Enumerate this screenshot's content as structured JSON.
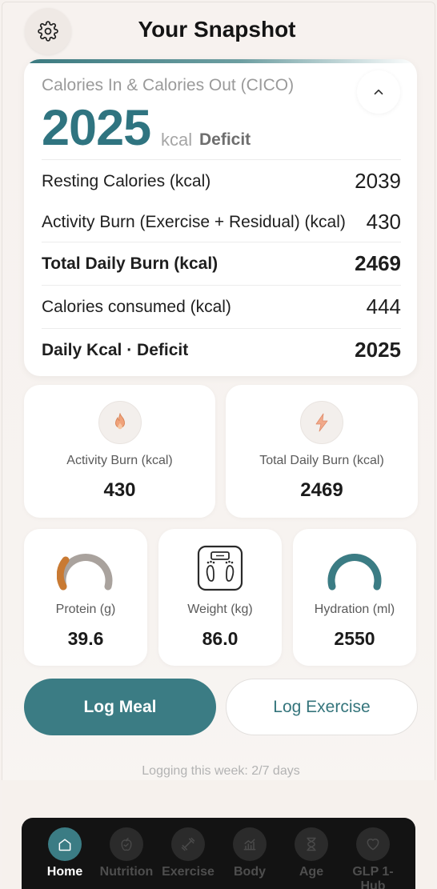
{
  "header": {
    "title": "Your Snapshot",
    "settings_icon": "gear-icon"
  },
  "cico": {
    "heading": "Calories In & Calories Out (CICO)",
    "collapse_icon": "chevron-up-icon",
    "value": "2025",
    "unit": "kcal",
    "status": "Deficit",
    "rows": [
      {
        "label": "Resting Calories (kcal)",
        "value": "2039",
        "bold": false
      },
      {
        "label": "Activity Burn (Exercise + Residual) (kcal)",
        "value": "430",
        "bold": false
      },
      {
        "label": "Total Daily Burn (kcal)",
        "value": "2469",
        "bold": true
      },
      {
        "label": "Calories consumed (kcal)",
        "value": "444",
        "bold": false
      },
      {
        "label": "Daily Kcal · Deficit",
        "value": "2025",
        "bold": true
      }
    ],
    "accent_color": "#3b7a80"
  },
  "stats": {
    "activity": {
      "label": "Activity Burn (kcal)",
      "value": "430",
      "icon": "flame-icon"
    },
    "total": {
      "label": "Total Daily Burn (kcal)",
      "value": "2469",
      "icon": "lightning-icon"
    }
  },
  "metrics": {
    "protein": {
      "label": "Protein (g)",
      "value": "39.6",
      "icon": "gauge-icon",
      "progress": 0.3
    },
    "weight": {
      "label": "Weight (kg)",
      "value": "86.0",
      "icon": "scale-icon"
    },
    "hydration": {
      "label": "Hydration (ml)",
      "value": "2550",
      "icon": "gauge-icon",
      "progress": 1.0
    }
  },
  "actions": {
    "log_meal": "Log Meal",
    "log_exercise": "Log Exercise"
  },
  "logging_note": "Logging this week: 2/7 days",
  "nav": {
    "items": [
      {
        "label": "Home",
        "icon": "home-icon",
        "active": true
      },
      {
        "label": "Nutrition",
        "icon": "apple-icon",
        "active": false
      },
      {
        "label": "Exercise",
        "icon": "dumbbell-icon",
        "active": false
      },
      {
        "label": "Body",
        "icon": "chart-icon",
        "active": false
      },
      {
        "label": "Age",
        "icon": "hourglass-icon",
        "active": false
      },
      {
        "label": "GLP 1-Hub",
        "icon": "heart-icon",
        "active": false
      }
    ]
  },
  "colors": {
    "brand": "#3b7c84",
    "protein_fill": "#c97a33",
    "gauge_track": "#a9a29d",
    "hydration": "#3b7c84"
  }
}
